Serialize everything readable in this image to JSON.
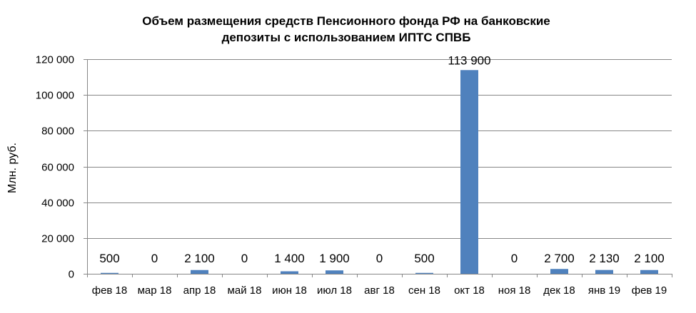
{
  "chart_data": {
    "type": "bar",
    "title_line1": "Объем размещения средств Пенсионного фонда РФ  на банковские",
    "title_line2": "депозиты с использованием ИПТС СПВБ",
    "ylabel": "Млн. руб.",
    "xlabel": "",
    "categories": [
      "фев 18",
      "мар 18",
      "апр 18",
      "май 18",
      "июн 18",
      "июл 18",
      "авг 18",
      "сен 18",
      "окт 18",
      "ноя 18",
      "дек 18",
      "янв 19",
      "фев 19"
    ],
    "values": [
      500,
      0,
      2100,
      0,
      1400,
      1900,
      0,
      500,
      113900,
      0,
      2700,
      2130,
      2100
    ],
    "value_labels": [
      "500",
      "0",
      "2 100",
      "0",
      "1 400",
      "1 900",
      "0",
      "500",
      "113 900",
      "0",
      "2 700",
      "2 130",
      "2 100"
    ],
    "ylim": [
      0,
      120000
    ],
    "yticks": [
      0,
      20000,
      40000,
      60000,
      80000,
      100000,
      120000
    ],
    "ytick_labels": [
      "0",
      "20 000",
      "40 000",
      "60 000",
      "80 000",
      "100 000",
      "120 000"
    ],
    "grid": true,
    "bar_color": "#4f81bd",
    "grid_color": "#878787"
  }
}
